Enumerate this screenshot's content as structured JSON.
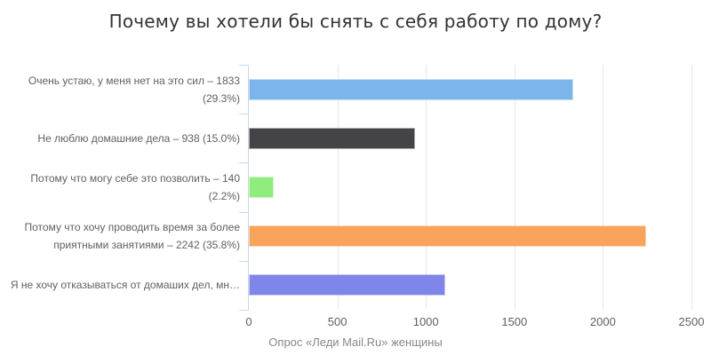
{
  "header": {
    "title": "Почему вы хотели бы снять с себя работу по дому?"
  },
  "footer": {
    "credits": "Опрос «Леди Mail.Ru» женщины"
  },
  "colors": {
    "background": "#ffffff",
    "title": "#333333",
    "category_label": "#606060",
    "tick_label": "#606060",
    "credits": "#888888",
    "gridline": "#e6e6e6",
    "axis_line": "#ccd6eb"
  },
  "chart_data": {
    "type": "bar",
    "orientation": "horizontal",
    "title": "Почему вы хотели бы снять с себя работу по дому?",
    "categories": [
      "Очень устаю, у меня нет на это сил – 1833 (29.3%)",
      "Не люблю домашние дела – 938 (15.0%)",
      "Потому что могу себе это позволить – 140 (2.2%)",
      "Потому что хочу проводить время за более приятными занятиями – 2242 (35.8%)",
      "Я не хочу отказываться от домаших дел, мн…"
    ],
    "category_label_lines": [
      [
        "Очень устаю, у меня нет на это сил – 1833",
        "(29.3%)"
      ],
      [
        "Не люблю домашние дела – 938 (15.0%)"
      ],
      [
        "Потому что могу себе это позволить – 140",
        "(2.2%)"
      ],
      [
        "Потому что хочу проводить время за более",
        "приятными занятиями – 2242 (35.8%)"
      ],
      [
        "Я не хочу отказываться от домаших дел, мн…"
      ]
    ],
    "values": [
      1833,
      938,
      140,
      2242,
      1107
    ],
    "percent_shown": [
      "29.3%",
      "15.0%",
      "2.2%",
      "35.8%",
      ""
    ],
    "bar_colors": [
      "#7cb5ec",
      "#434348",
      "#90ed7d",
      "#f7a35c",
      "#8085e9"
    ],
    "xlabel": "",
    "ylabel": "",
    "xlim": [
      0,
      2500
    ],
    "x_ticks": [
      "0",
      "500",
      "1000",
      "1500",
      "2000",
      "2500"
    ],
    "grid": true,
    "legend_position": "none",
    "credits": "Опрос «Леди Mail.Ru» женщины"
  }
}
